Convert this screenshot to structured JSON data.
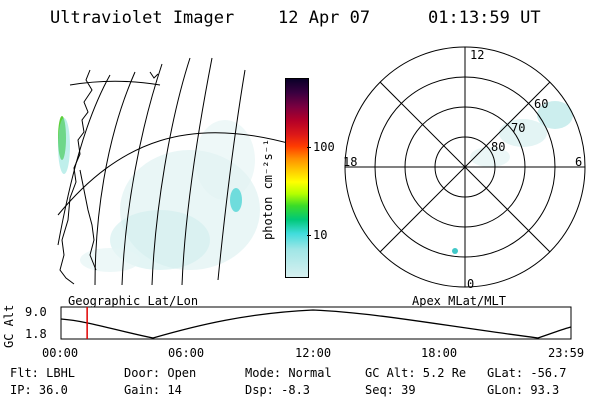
{
  "header": {
    "instrument": "Ultraviolet Imager",
    "date": "12 Apr 07",
    "time": "01:13:59 UT"
  },
  "left_panel": {
    "caption": "Geographic Lat/Lon"
  },
  "colorbar": {
    "label": "photon cm⁻²s⁻¹",
    "scale": "log",
    "ticks": [
      "100",
      "10"
    ],
    "colors": [
      "#0a0028",
      "#3a0040",
      "#7a0040",
      "#b40028",
      "#dc1818",
      "#ff3c00",
      "#ff8c00",
      "#ffc800",
      "#ffff00",
      "#b4ff00",
      "#3cdc28",
      "#00c878",
      "#40dcdc",
      "#9fe6e6",
      "#d7f0f0"
    ]
  },
  "right_panel": {
    "caption": "Apex MLat/MLT",
    "mlt_labels": {
      "top": "12",
      "left": "18",
      "right": "6",
      "bottom": "0"
    },
    "lat_labels": [
      "60",
      "70",
      "80"
    ]
  },
  "altitude_plot": {
    "ylabel": "GC Alt",
    "yticks": [
      "9.0",
      "1.8"
    ],
    "xticks": [
      "00:00",
      "06:00",
      "12:00",
      "18:00",
      "23:59"
    ],
    "marker_time_hours": 1.23
  },
  "info": {
    "filter": "Flt: LBHL",
    "door": "Door: Open",
    "mode": "Mode: Normal",
    "gc_alt": "GC Alt: 5.2 Re",
    "glat": "GLat: -56.7",
    "ip": "IP: 36.0",
    "gain": "Gain: 14",
    "dsp": "Dsp:   -8.3",
    "seq": "Seq: 39",
    "glon": "GLon:  93.3"
  }
}
